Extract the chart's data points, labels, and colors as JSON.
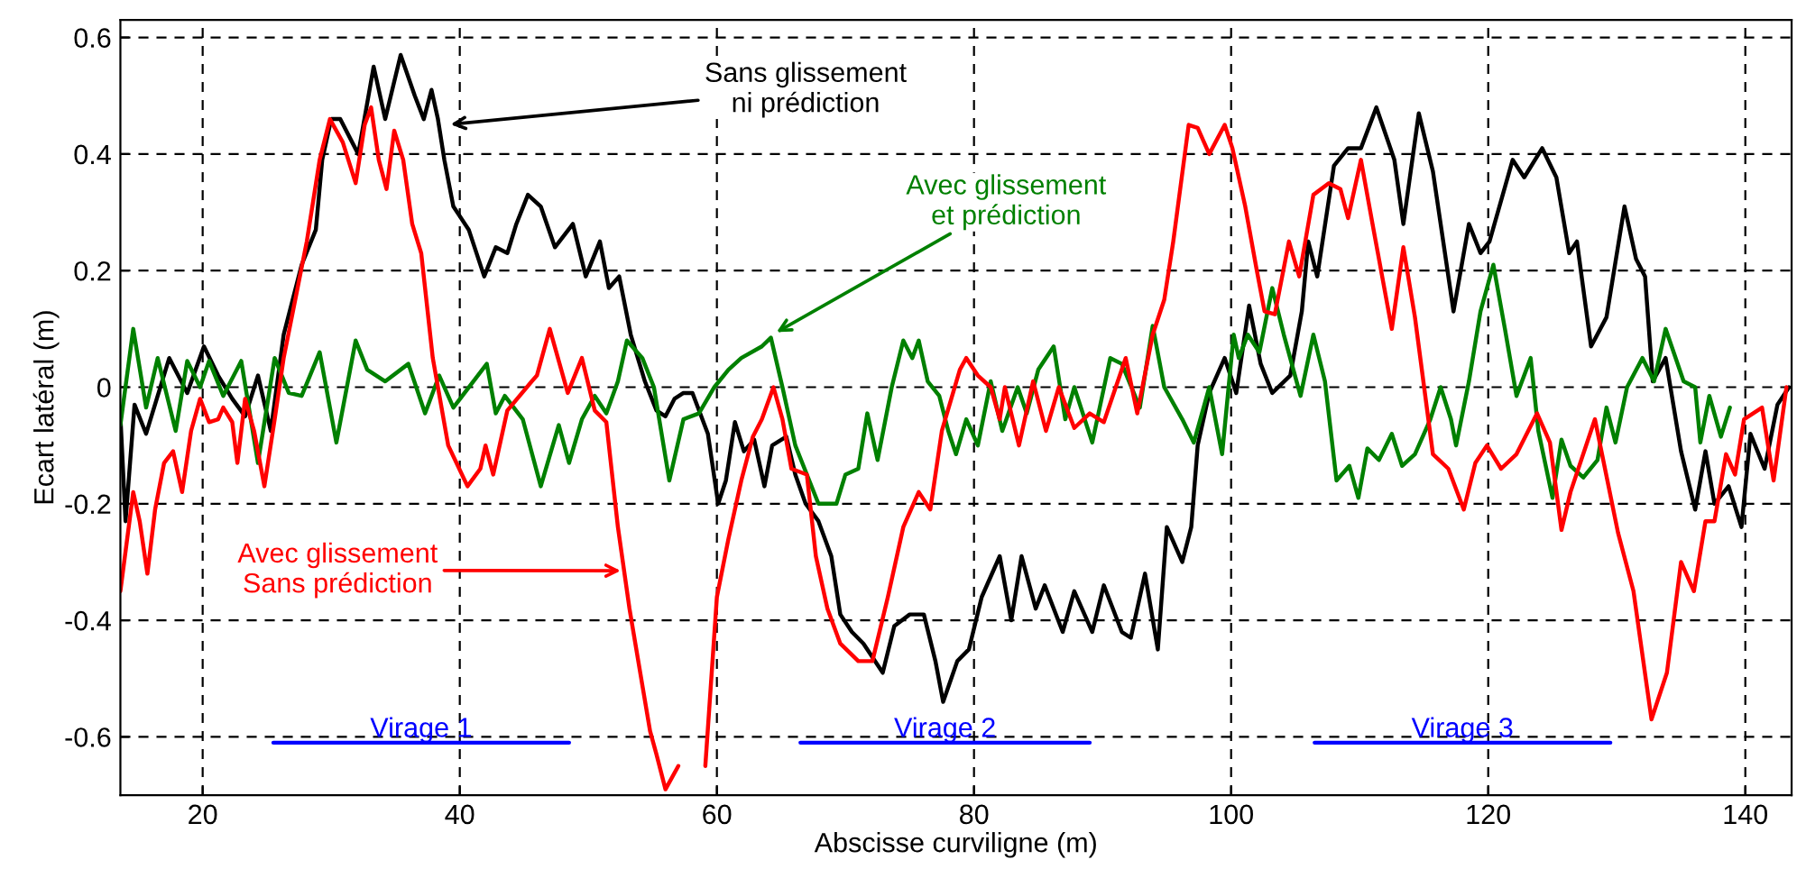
{
  "chart_data": {
    "type": "line",
    "xlabel": "Abscisse curviligne (m)",
    "ylabel": "Ecart latéral (m)",
    "xlim": [
      13.6,
      143.6
    ],
    "ylim": [
      -0.7,
      0.63
    ],
    "xticks": [
      20,
      40,
      60,
      80,
      100,
      120,
      140
    ],
    "yticks": [
      -0.6,
      -0.4,
      -0.2,
      0,
      0.2,
      0.4,
      0.6
    ],
    "grid": true,
    "line_style": "solid",
    "marker": "none",
    "annotations": [
      {
        "text": "Sans glissement\nni prédiction",
        "x": 38.9,
        "y": 0.45
      },
      {
        "text": "Avec glissement\net prédiction",
        "x": 64.3,
        "y": 0.09
      },
      {
        "text": "Avec glissement\nSans prédiction",
        "x": 52.9,
        "y": -0.315
      }
    ],
    "series": [
      {
        "color": "#000000",
        "x": [
          13.6,
          14,
          14.7,
          15.6,
          17.4,
          18.8,
          20.1,
          21.2,
          22.3,
          23.3,
          24.3,
          25.3,
          26.3,
          27,
          27.7,
          28.8,
          29.3,
          30,
          30.7,
          32.1,
          33.3,
          34.2,
          35.4,
          36.5,
          37.2,
          37.8,
          38.3,
          38.8,
          39.5,
          40.7,
          41.9,
          42.8,
          43.7,
          44.4,
          45.3,
          46.3,
          47.4,
          48.8,
          49.8,
          50.9,
          51.6,
          52.4,
          53.3,
          54.4,
          55.3,
          56,
          56.7,
          57.4,
          58.1,
          59.3,
          60.1,
          60.7,
          61.4,
          62.1,
          62.9,
          63.7,
          64.3,
          65.4,
          66.1,
          66.9,
          67.9,
          68.9,
          69.6,
          70.5,
          71.4,
          72.9,
          73.8,
          75,
          76.1,
          77,
          77.6,
          78.7,
          79.6,
          80.6,
          82,
          82.9,
          83.7,
          84.8,
          85.5,
          86.9,
          87.8,
          89.2,
          90.1,
          91.5,
          92.2,
          93.3,
          94.3,
          95,
          96.2,
          96.9,
          97.4,
          98.3,
          99.5,
          100.4,
          100.8,
          101.4,
          102.3,
          103.2,
          104.6,
          105.5,
          106,
          106.7,
          108,
          109.1,
          110.1,
          111.3,
          112.7,
          113.4,
          114.6,
          115.7,
          117.3,
          118.5,
          119.4,
          120.1,
          121.9,
          122.8,
          124.2,
          125.3,
          126.3,
          126.9,
          128,
          129.2,
          130.6,
          131.5,
          132.2,
          132.8,
          133.8,
          135,
          136.1,
          136.9,
          137.6,
          138.7,
          139.7,
          140.4,
          141.5,
          142.5,
          143.4
        ],
        "values": [
          -0.05,
          -0.23,
          -0.03,
          -0.08,
          0.05,
          -0.01,
          0.07,
          0.02,
          -0.02,
          -0.05,
          0.02,
          -0.075,
          0.09,
          0.15,
          0.21,
          0.27,
          0.39,
          0.46,
          0.46,
          0.4,
          0.55,
          0.46,
          0.57,
          0.5,
          0.46,
          0.51,
          0.46,
          0.39,
          0.31,
          0.27,
          0.19,
          0.24,
          0.23,
          0.28,
          0.33,
          0.31,
          0.24,
          0.28,
          0.19,
          0.25,
          0.17,
          0.19,
          0.09,
          0.01,
          -0.04,
          -0.05,
          -0.02,
          -0.01,
          -0.01,
          -0.08,
          -0.2,
          -0.16,
          -0.06,
          -0.11,
          -0.09,
          -0.17,
          -0.1,
          -0.085,
          -0.15,
          -0.2,
          -0.23,
          -0.29,
          -0.39,
          -0.42,
          -0.44,
          -0.49,
          -0.41,
          -0.39,
          -0.39,
          -0.47,
          -0.54,
          -0.47,
          -0.45,
          -0.36,
          -0.29,
          -0.4,
          -0.29,
          -0.38,
          -0.34,
          -0.42,
          -0.35,
          -0.42,
          -0.34,
          -0.42,
          -0.43,
          -0.32,
          -0.45,
          -0.24,
          -0.3,
          -0.24,
          -0.1,
          -0.01,
          0.05,
          -0.01,
          0.05,
          0.14,
          0.04,
          -0.01,
          0.02,
          0.13,
          0.25,
          0.19,
          0.38,
          0.41,
          0.41,
          0.48,
          0.39,
          0.28,
          0.47,
          0.37,
          0.13,
          0.28,
          0.23,
          0.25,
          0.39,
          0.36,
          0.41,
          0.36,
          0.23,
          0.25,
          0.07,
          0.12,
          0.31,
          0.22,
          0.19,
          0.01,
          0.05,
          -0.11,
          -0.21,
          -0.11,
          -0.2,
          -0.17,
          -0.24,
          -0.08,
          -0.14,
          -0.03,
          0
        ]
      },
      {
        "color": "#008000",
        "x": [
          13.6,
          14.6,
          15.6,
          16.5,
          17.9,
          18.8,
          19.8,
          20.5,
          21.6,
          23,
          24.3,
          25.6,
          26.7,
          27.7,
          29.1,
          30.4,
          31.9,
          32.8,
          34.2,
          36,
          37.3,
          38.4,
          39.5,
          42.1,
          42.8,
          43.5,
          44.9,
          46.3,
          47.7,
          48.5,
          49.5,
          50.5,
          51.4,
          52.3,
          53,
          54.2,
          55.1,
          56.3,
          57.4,
          58.6,
          59.8,
          60.9,
          61.9,
          63.5,
          64.2,
          65.1,
          66.1,
          67.9,
          69.3,
          70,
          71,
          71.7,
          72.5,
          73.6,
          74.5,
          75.2,
          75.7,
          76.4,
          77.3,
          78,
          78.6,
          79.4,
          80.3,
          81.3,
          82.2,
          83.4,
          84.1,
          85,
          86.2,
          87.1,
          87.8,
          89.2,
          90.6,
          91.5,
          92.9,
          93.9,
          94.8,
          96.2,
          97.1,
          98.3,
          99.3,
          100.2,
          100.6,
          101.3,
          102.2,
          103.2,
          104.1,
          105.4,
          106.4,
          107.3,
          108.2,
          109.2,
          109.9,
          110.6,
          111.5,
          112.5,
          113.3,
          114.3,
          115.5,
          116.3,
          117.1,
          117.5,
          118.5,
          119.4,
          120.4,
          121.3,
          122.2,
          123.3,
          123.9,
          125,
          125.7,
          126.4,
          127.4,
          128.5,
          129.2,
          129.9,
          130.8,
          132,
          132.9,
          133.8,
          135.2,
          136.1,
          136.5,
          137.2,
          138.1,
          138.8
        ],
        "values": [
          -0.065,
          0.1,
          -0.035,
          0.05,
          -0.075,
          0.045,
          0,
          0.045,
          -0.015,
          0.045,
          -0.13,
          0.05,
          -0.01,
          -0.015,
          0.06,
          -0.095,
          0.08,
          0.03,
          0.01,
          0.04,
          -0.045,
          0.02,
          -0.035,
          0.04,
          -0.045,
          -0.015,
          -0.055,
          -0.17,
          -0.065,
          -0.13,
          -0.055,
          -0.015,
          -0.045,
          0.01,
          0.08,
          0.05,
          0,
          -0.16,
          -0.055,
          -0.045,
          0,
          0.03,
          0.05,
          0.07,
          0.085,
          0,
          -0.1,
          -0.2,
          -0.2,
          -0.15,
          -0.14,
          -0.045,
          -0.125,
          0,
          0.08,
          0.05,
          0.08,
          0.01,
          -0.015,
          -0.075,
          -0.115,
          -0.055,
          -0.1,
          0.01,
          -0.075,
          0,
          -0.045,
          0.03,
          0.07,
          -0.055,
          0,
          -0.095,
          0.05,
          0.04,
          -0.035,
          0.105,
          0,
          -0.055,
          -0.095,
          0,
          -0.115,
          0.09,
          0.05,
          0.09,
          0.06,
          0.17,
          0.09,
          -0.015,
          0.09,
          0.01,
          -0.16,
          -0.135,
          -0.19,
          -0.105,
          -0.125,
          -0.08,
          -0.135,
          -0.115,
          -0.055,
          0,
          -0.055,
          -0.1,
          0.01,
          0.13,
          0.21,
          0.1,
          -0.015,
          0.05,
          -0.075,
          -0.19,
          -0.09,
          -0.135,
          -0.155,
          -0.125,
          -0.035,
          -0.095,
          0,
          0.05,
          0.01,
          0.1,
          0.01,
          0,
          -0.095,
          -0.015,
          -0.085,
          -0.035
        ]
      },
      {
        "color": "#ff0000",
        "x": [
          13.6,
          14.6,
          15.1,
          15.7,
          16.3,
          17,
          17.7,
          18.4,
          19.1,
          19.8,
          20.5,
          21.2,
          21.6,
          22.3,
          22.7,
          23.3,
          24,
          24.8,
          25.6,
          26.3,
          27.2,
          28.1,
          29.1,
          29.9,
          30.9,
          31.9,
          32.6,
          33.1,
          33.7,
          34.3,
          34.9,
          35.6,
          36.3,
          37,
          37.9,
          39.1,
          40.6,
          41.6,
          42,
          42.6,
          43.7,
          45.6,
          46,
          47,
          48.4,
          49.5,
          50.5,
          51.4,
          52.3,
          53.2,
          54.8,
          55.3,
          56,
          57,
          57.7,
          58.6,
          59.1,
          60,
          60.9,
          61.9,
          62.8,
          63.5,
          64.4,
          65.1,
          65.8,
          67,
          67.7,
          68.6,
          69.6,
          71,
          72.1,
          73.3,
          74.5,
          75.7,
          76.6,
          77.5,
          78.9,
          79.4,
          80.3,
          81.3,
          82,
          82.4,
          83.5,
          84.6,
          85.6,
          86.6,
          87.8,
          89,
          90.1,
          91.8,
          92.7,
          93.9,
          94.8,
          95.5,
          96.7,
          97.4,
          98.3,
          99.5,
          100.1,
          101.1,
          102,
          102.6,
          103.4,
          104.5,
          105.3,
          106.4,
          107.6,
          108.5,
          109.1,
          110.1,
          111,
          112.5,
          113.4,
          114.3,
          115.7,
          116.9,
          118.1,
          119,
          119.9,
          121,
          122.2,
          123.8,
          124.8,
          125.7,
          126.4,
          128.3,
          130.1,
          131.3,
          132.7,
          133.9,
          135,
          136,
          136.9,
          137.6,
          138.5,
          139.2,
          139.9,
          141.3,
          142.2,
          143.2
        ],
        "values": [
          -0.35,
          -0.18,
          -0.23,
          -0.32,
          -0.21,
          -0.13,
          -0.11,
          -0.18,
          -0.075,
          -0.02,
          -0.06,
          -0.055,
          -0.035,
          -0.06,
          -0.13,
          -0.02,
          -0.075,
          -0.17,
          -0.055,
          0.05,
          0.15,
          0.25,
          0.39,
          0.46,
          0.42,
          0.35,
          0.45,
          0.48,
          0.39,
          0.34,
          0.44,
          0.39,
          0.28,
          0.23,
          0.05,
          -0.1,
          -0.17,
          -0.14,
          -0.1,
          -0.15,
          -0.04,
          0.01,
          0.02,
          0.1,
          -0.01,
          0.05,
          -0.04,
          -0.06,
          -0.24,
          -0.38,
          -0.59,
          -0.63,
          -0.69,
          -0.65,
          null,
          null,
          -0.65,
          -0.36,
          -0.26,
          -0.16,
          -0.085,
          -0.055,
          0,
          -0.055,
          -0.14,
          -0.15,
          -0.29,
          -0.38,
          -0.44,
          -0.47,
          -0.47,
          -0.36,
          -0.24,
          -0.18,
          -0.21,
          -0.075,
          0.03,
          0.05,
          0.02,
          0,
          -0.055,
          0,
          -0.1,
          0.01,
          -0.075,
          0,
          -0.07,
          -0.045,
          -0.06,
          0.05,
          -0.045,
          0.09,
          0.15,
          0.25,
          0.45,
          0.445,
          0.4,
          0.45,
          0.41,
          0.31,
          0.2,
          0.13,
          0.125,
          0.25,
          0.19,
          0.33,
          0.35,
          0.34,
          0.29,
          0.39,
          0.28,
          0.1,
          0.24,
          0.12,
          -0.115,
          -0.14,
          -0.21,
          -0.13,
          -0.1,
          -0.14,
          -0.115,
          -0.045,
          -0.095,
          -0.245,
          -0.18,
          -0.055,
          -0.25,
          -0.35,
          -0.57,
          -0.49,
          -0.3,
          -0.35,
          -0.23,
          -0.23,
          -0.115,
          -0.15,
          -0.055,
          -0.035,
          -0.16,
          0
        ]
      },
      {
        "name": "Virage 1",
        "color": "#0000ff",
        "x": [
          25.5,
          48.5
        ],
        "values": [
          -0.61,
          -0.61
        ]
      },
      {
        "name": "Virage 2",
        "color": "#0000ff",
        "x": [
          66.5,
          89
        ],
        "values": [
          -0.61,
          -0.61
        ]
      },
      {
        "name": "Virage 3",
        "color": "#0000ff",
        "x": [
          106.5,
          129.5
        ],
        "values": [
          -0.61,
          -0.61
        ]
      }
    ]
  }
}
